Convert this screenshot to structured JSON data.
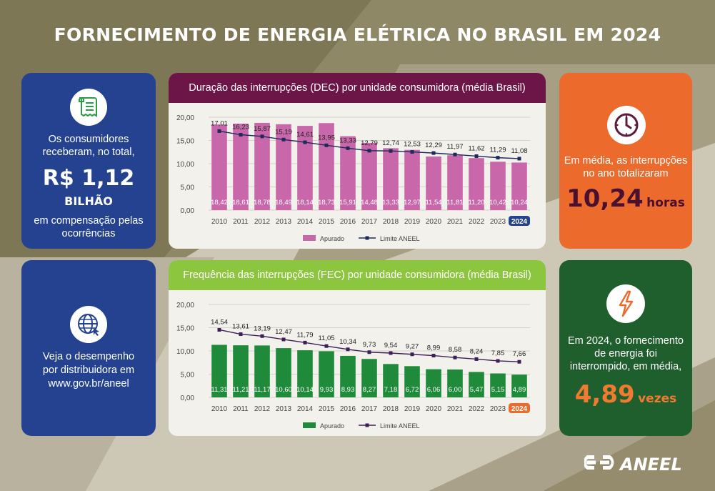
{
  "title": "FORNECIMENTO DE ENERGIA ELÉTRICA NO BRASIL EM 2024",
  "cards": {
    "compensation": {
      "icon": "receipt-icon",
      "line1": "Os consumidores",
      "line2": "receberam, no total,",
      "value": "R$ 1,12",
      "unit": "BILHÃO",
      "line3": "em compensação pelas",
      "line4": "ocorrências"
    },
    "website": {
      "icon": "globe-icon",
      "line1": "Veja o desempenho",
      "line2": "por distribuidora em",
      "line3": "www.gov.br/aneel"
    },
    "duration": {
      "icon": "clock-icon",
      "line1": "Em média, as interrupções",
      "line2": "no ano totalizaram",
      "value": "10,24",
      "unit": "horas"
    },
    "frequency": {
      "icon": "lightning-icon",
      "line1": "Em 2024, o fornecimento",
      "line2": "de energia foi",
      "line3": "interrompido, em média,",
      "value": "4,89",
      "unit": "vezes"
    }
  },
  "logo": {
    "text": "ANEEL",
    "icon": "aneel-logo-icon"
  },
  "colors": {
    "blue": "#24428f",
    "orange": "#eb6a2c",
    "green_card": "#1f5e2d",
    "dec_header": "#6b1646",
    "fec_header": "#8cc63f",
    "dec_bar": "#c867a9",
    "fec_bar": "#1e8a3a",
    "limit_line": "#1f2a5a",
    "fec_limit_line": "#3d1f57"
  },
  "chart_data": [
    {
      "type": "bar",
      "title": "Duração das interrupções (DEC) por unidade consumidora (média Brasil)",
      "categories": [
        "2010",
        "2011",
        "2012",
        "2013",
        "2014",
        "2015",
        "2016",
        "2017",
        "2018",
        "2019",
        "2020",
        "2021",
        "2022",
        "2023",
        "2024"
      ],
      "series": [
        {
          "name": "Apurado",
          "type": "bar",
          "values": [
            18.42,
            18.61,
            18.78,
            18.49,
            18.14,
            18.73,
            15.91,
            14.48,
            13.33,
            12.97,
            11.54,
            11.81,
            11.2,
            10.42,
            10.24
          ],
          "labels": [
            "18,42",
            "18,61",
            "18,78",
            "18,49",
            "18,14",
            "18,73",
            "15,91",
            "14,48",
            "13,33",
            "12,97",
            "11,54",
            "11,81",
            "11,20",
            "10,42",
            "10,24"
          ]
        },
        {
          "name": "Limite ANEEL",
          "type": "line",
          "values": [
            17.01,
            16.23,
            15.87,
            15.19,
            14.61,
            13.95,
            13.33,
            12.79,
            12.74,
            12.53,
            12.29,
            11.97,
            11.62,
            11.29,
            11.08
          ],
          "labels": [
            "17,01",
            "16,23",
            "15,87",
            "15,19",
            "14,61",
            "13,95",
            "13,33",
            "12,79",
            "12,74",
            "12,53",
            "12,29",
            "11,97",
            "11,62",
            "11,29",
            "11,08"
          ]
        }
      ],
      "yticks": [
        "0,00",
        "5,00",
        "10,00",
        "15,00",
        "20,00"
      ],
      "ylim": [
        0,
        20
      ],
      "highlight_category": "2024",
      "legend": "bottom"
    },
    {
      "type": "bar",
      "title": "Frequência das interrupções (FEC) por unidade consumidora (média Brasil)",
      "categories": [
        "2010",
        "2011",
        "2012",
        "2013",
        "2014",
        "2015",
        "2016",
        "2017",
        "2018",
        "2019",
        "2020",
        "2021",
        "2022",
        "2023",
        "2024"
      ],
      "series": [
        {
          "name": "Apurado",
          "type": "bar",
          "values": [
            11.31,
            11.21,
            11.17,
            10.6,
            10.14,
            9.93,
            8.93,
            8.27,
            7.18,
            6.72,
            6.06,
            6.0,
            5.47,
            5.15,
            4.89
          ],
          "labels": [
            "11,31",
            "11,21",
            "11,17",
            "10,60",
            "10,14",
            "9,93",
            "8,93",
            "8,27",
            "7,18",
            "6,72",
            "6,06",
            "6,00",
            "5,47",
            "5,15",
            "4,89"
          ]
        },
        {
          "name": "Limite ANEEL",
          "type": "line",
          "values": [
            14.54,
            13.61,
            13.19,
            12.47,
            11.79,
            11.05,
            10.34,
            9.73,
            9.54,
            9.27,
            8.99,
            8.58,
            8.24,
            7.85,
            7.66
          ],
          "labels": [
            "14,54",
            "13,61",
            "13,19",
            "12,47",
            "11,79",
            "11,05",
            "10,34",
            "9,73",
            "9,54",
            "9,27",
            "8,99",
            "8,58",
            "8,24",
            "7,85",
            "7,66"
          ]
        }
      ],
      "yticks": [
        "0,00",
        "5,00",
        "10,00",
        "15,00",
        "20,00"
      ],
      "ylim": [
        0,
        20
      ],
      "highlight_category": "2024",
      "legend": "bottom"
    }
  ]
}
